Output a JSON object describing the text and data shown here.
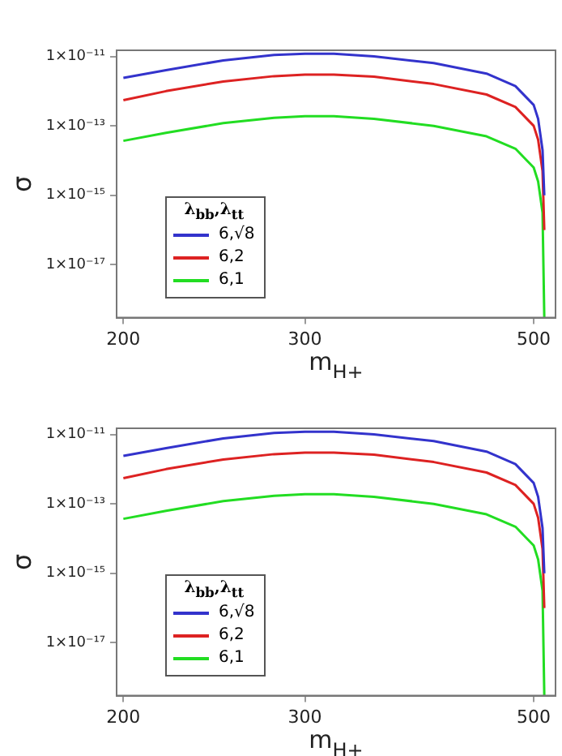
{
  "chart_data": [
    {
      "type": "line",
      "xlabel": "m$_{H+}$",
      "ylabel": "σ",
      "legend_title": "λ$_{bb}$,λ$_{tt}$",
      "legend": "bottom left",
      "log": "xy",
      "grid": false,
      "x": [
        200,
        220,
        250,
        280,
        300,
        320,
        350,
        400,
        450,
        480,
        500,
        505,
        510,
        512
      ],
      "series": [
        {
          "name": "6,√8",
          "color": "#3333cc",
          "values": [
            2.4e-12,
            4e-12,
            7.7e-12,
            1.1e-11,
            1.2e-11,
            1.2e-11,
            1e-11,
            6.4e-12,
            3.2e-12,
            1.4e-12,
            4e-13,
            1.6e-13,
            2e-14,
            1e-15
          ]
        },
        {
          "name": "6,2",
          "color": "#dd2222",
          "values": [
            5.5e-13,
            1e-12,
            1.9e-12,
            2.7e-12,
            3e-12,
            3e-12,
            2.6e-12,
            1.6e-12,
            8e-13,
            3.5e-13,
            1e-13,
            4e-14,
            5e-15,
            1e-16
          ]
        },
        {
          "name": "6,1",
          "color": "#22dd22",
          "values": [
            3.7e-14,
            6.3e-14,
            1.2e-13,
            1.7e-13,
            1.9e-13,
            1.9e-13,
            1.6e-13,
            1e-13,
            5e-14,
            2.2e-14,
            6.3e-15,
            2.5e-15,
            3.2e-16,
            3e-19
          ]
        }
      ],
      "xlim": [
        197,
        525
      ],
      "xticks": [
        200,
        300,
        500
      ],
      "ylim": [
        3e-19,
        1.5e-11
      ],
      "yticks": [
        {
          "value": 1e-11,
          "label": "1×10⁻¹¹"
        },
        {
          "value": 1e-13,
          "label": "1×10⁻¹³"
        },
        {
          "value": 1e-15,
          "label": "1×10⁻¹⁵"
        },
        {
          "value": 1e-17,
          "label": "1×10⁻¹⁷"
        }
      ]
    },
    {
      "type": "line",
      "xlabel": "m$_{H+}$",
      "ylabel": "σ",
      "legend_title": "λ$_{bb}$,λ$_{tt}$",
      "legend": "bottom left",
      "log": "xy",
      "grid": false,
      "x": [
        200,
        220,
        250,
        280,
        300,
        320,
        350,
        400,
        450,
        480,
        500,
        505,
        510,
        512
      ],
      "series": [
        {
          "name": "6,√8",
          "color": "#3333cc",
          "values": [
            2.4e-12,
            4e-12,
            7.7e-12,
            1.1e-11,
            1.2e-11,
            1.2e-11,
            1e-11,
            6.4e-12,
            3.2e-12,
            1.4e-12,
            4e-13,
            1.6e-13,
            2e-14,
            1e-15
          ]
        },
        {
          "name": "6,2",
          "color": "#dd2222",
          "values": [
            5.5e-13,
            1e-12,
            1.9e-12,
            2.7e-12,
            3e-12,
            3e-12,
            2.6e-12,
            1.6e-12,
            8e-13,
            3.5e-13,
            1e-13,
            4e-14,
            5e-15,
            1e-16
          ]
        },
        {
          "name": "6,1",
          "color": "#22dd22",
          "values": [
            3.7e-14,
            6.3e-14,
            1.2e-13,
            1.7e-13,
            1.9e-13,
            1.9e-13,
            1.6e-13,
            1e-13,
            5e-14,
            2.2e-14,
            6.3e-15,
            2.5e-15,
            3.2e-16,
            3e-19
          ]
        }
      ],
      "xlim": [
        197,
        525
      ],
      "xticks": [
        200,
        300,
        500
      ],
      "ylim": [
        3e-19,
        1.5e-11
      ],
      "yticks": [
        {
          "value": 1e-11,
          "label": "1×10⁻¹¹"
        },
        {
          "value": 1e-13,
          "label": "1×10⁻¹³"
        },
        {
          "value": 1e-15,
          "label": "1×10⁻¹⁵"
        },
        {
          "value": 1e-17,
          "label": "1×10⁻¹⁷"
        }
      ]
    }
  ]
}
